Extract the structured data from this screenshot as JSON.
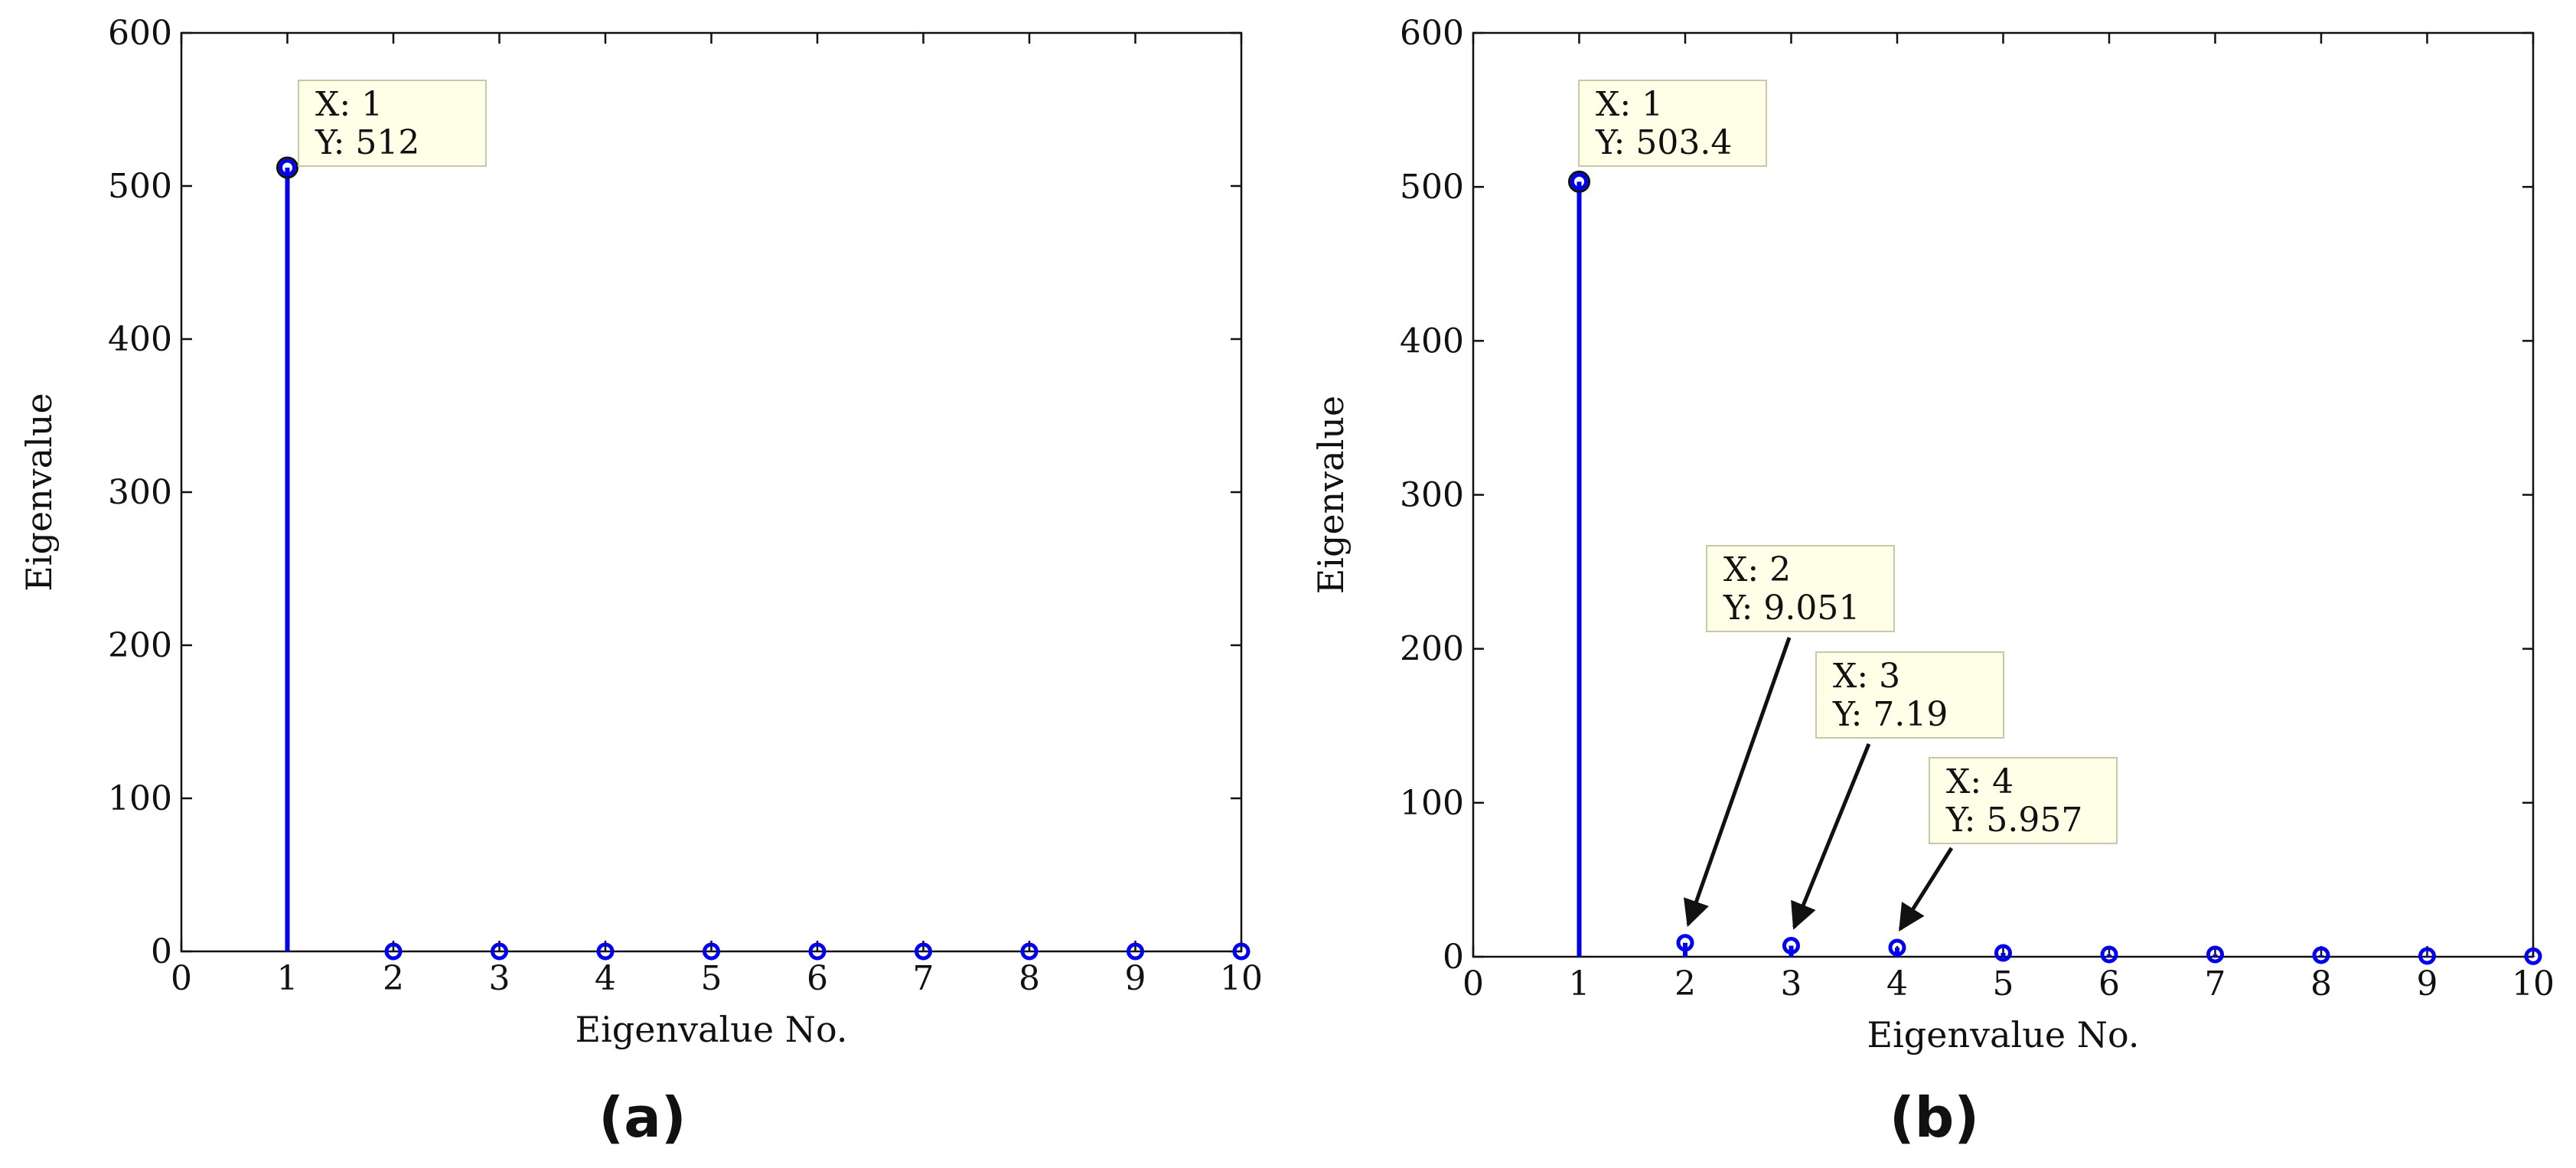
{
  "chart_data": [
    {
      "type": "stem",
      "panel_label": "(a)",
      "xlabel": "Eigenvalue No.",
      "ylabel": "Eigenvalue",
      "xlim": [
        0,
        10
      ],
      "ylim": [
        0,
        600
      ],
      "xticks": [
        0,
        1,
        2,
        3,
        4,
        5,
        6,
        7,
        8,
        9,
        10
      ],
      "yticks": [
        0,
        100,
        200,
        300,
        400,
        500,
        600
      ],
      "x": [
        1,
        2,
        3,
        4,
        5,
        6,
        7,
        8,
        9,
        10
      ],
      "y": [
        512,
        0,
        0,
        0,
        0,
        0,
        0,
        0,
        0,
        0
      ],
      "series_color": "#0000ee",
      "datatips": [
        {
          "x": 1,
          "y": 512,
          "x_text": "X: 1",
          "y_text": "Y: 512"
        }
      ]
    },
    {
      "type": "stem",
      "panel_label": "(b)",
      "xlabel": "Eigenvalue No.",
      "ylabel": "Eigenvalue",
      "xlim": [
        0,
        10
      ],
      "ylim": [
        0,
        600
      ],
      "xticks": [
        0,
        1,
        2,
        3,
        4,
        5,
        6,
        7,
        8,
        9,
        10
      ],
      "yticks": [
        0,
        100,
        200,
        300,
        400,
        500,
        600
      ],
      "x": [
        1,
        2,
        3,
        4,
        5,
        6,
        7,
        8,
        9,
        10
      ],
      "y": [
        503.4,
        9.051,
        7.19,
        5.957,
        2.5,
        1.5,
        1.5,
        1,
        0.5,
        0.3
      ],
      "series_color": "#0000ee",
      "datatips": [
        {
          "x": 1,
          "y": 503.4,
          "x_text": "X: 1",
          "y_text": "Y: 503.4"
        },
        {
          "x": 2,
          "y": 9.051,
          "x_text": "X: 2",
          "y_text": "Y: 9.051"
        },
        {
          "x": 3,
          "y": 7.19,
          "x_text": "X: 3",
          "y_text": "Y: 7.19"
        },
        {
          "x": 4,
          "y": 5.957,
          "x_text": "X: 4",
          "y_text": "Y: 5.957"
        }
      ]
    }
  ],
  "colors": {
    "datatip_fill": "#ffffe8",
    "datatip_border": "#c8c8a8",
    "axes": "#111111"
  }
}
